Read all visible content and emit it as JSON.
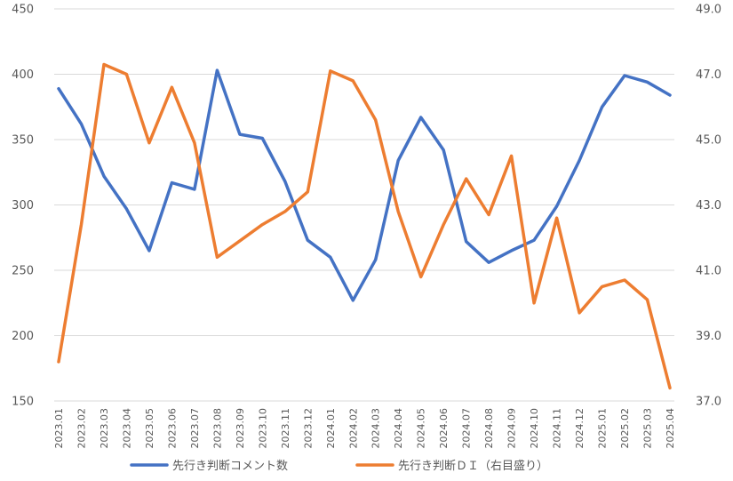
{
  "chart_data": {
    "type": "line",
    "categories": [
      "2023.01",
      "2023.02",
      "2023.03",
      "2023.04",
      "2023.05",
      "2023.06",
      "2023.07",
      "2023.08",
      "2023.09",
      "2023.10",
      "2023.11",
      "2023.12",
      "2024.01",
      "2024.02",
      "2024.03",
      "2024.04",
      "2024.05",
      "2024.06",
      "2024.07",
      "2024.08",
      "2024.09",
      "2024.10",
      "2024.11",
      "2024.12",
      "2025.01",
      "2025.02",
      "2025.03",
      "2025.04"
    ],
    "series": [
      {
        "name": "先行き判断コメント数",
        "axis": "left",
        "color": "#4472C4",
        "values": [
          389,
          362,
          322,
          297,
          265,
          317,
          312,
          403,
          354,
          351,
          318,
          273,
          260,
          227,
          258,
          334,
          367,
          342,
          272,
          256,
          265,
          273,
          299,
          334,
          375,
          399,
          394,
          384
        ]
      },
      {
        "name": "先行き判断ＤＩ（右目盛り）",
        "axis": "right",
        "color": "#ED7D31",
        "values": [
          38.2,
          42.4,
          47.3,
          47.0,
          44.9,
          46.6,
          44.9,
          41.4,
          41.9,
          42.4,
          42.8,
          43.4,
          47.1,
          46.8,
          45.6,
          42.8,
          40.8,
          42.4,
          43.8,
          42.7,
          44.5,
          40.0,
          42.6,
          39.7,
          40.5,
          40.7,
          40.1,
          37.4
        ]
      }
    ],
    "y_left": {
      "min": 150,
      "max": 450,
      "ticks": [
        "150",
        "200",
        "250",
        "300",
        "350",
        "400",
        "450"
      ]
    },
    "y_right": {
      "min": 37.0,
      "max": 49.0,
      "ticks": [
        "37.0",
        "39.0",
        "41.0",
        "43.0",
        "45.0",
        "47.0",
        "49.0"
      ]
    },
    "grid": true,
    "legend_position": "bottom"
  }
}
